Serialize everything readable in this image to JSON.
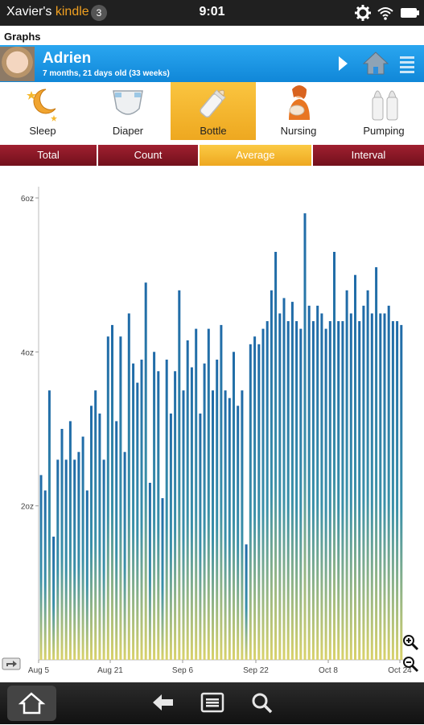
{
  "status_bar": {
    "device_owner": "Xavier's",
    "device_brand": "kindle",
    "notification_count": "3",
    "time": "9:01"
  },
  "screen_title": "Graphs",
  "child": {
    "name": "Adrien",
    "age": "7 months, 21 days old (33 weeks)"
  },
  "categories": [
    {
      "label": "Sleep",
      "icon": "moon-stars-icon",
      "active": false
    },
    {
      "label": "Diaper",
      "icon": "diaper-icon",
      "active": false
    },
    {
      "label": "Bottle",
      "icon": "bottle-icon",
      "active": true
    },
    {
      "label": "Nursing",
      "icon": "nursing-mother-icon",
      "active": false
    },
    {
      "label": "Pumping",
      "icon": "pump-bottles-icon",
      "active": false
    }
  ],
  "tabs": [
    {
      "label": "Total",
      "active": false
    },
    {
      "label": "Count",
      "active": false
    },
    {
      "label": "Average",
      "active": true
    },
    {
      "label": "Interval",
      "active": false
    }
  ],
  "colors": {
    "accent_blue": "#1a8ee0",
    "active_tab": "#f5b92e",
    "tab_red": "#8c1a28",
    "bar_top": "#1f6aa8",
    "bar_bottom": "#d9d26a"
  },
  "chart_data": {
    "type": "bar",
    "x_tick_labels": [
      "Aug 5",
      "Aug 21",
      "Sep 6",
      "Sep 22",
      "Oct 8",
      "Oct 24"
    ],
    "y_tick_labels": [
      "6oz",
      "4oz",
      "2oz"
    ],
    "ylim": [
      0,
      6
    ],
    "unit": "oz",
    "values": [
      2.4,
      2.2,
      3.5,
      1.6,
      2.6,
      3.0,
      2.6,
      3.1,
      2.6,
      2.7,
      2.9,
      2.2,
      3.3,
      3.5,
      3.2,
      2.6,
      4.2,
      4.35,
      3.1,
      4.2,
      2.7,
      4.5,
      3.85,
      3.6,
      3.9,
      4.9,
      2.3,
      4.0,
      3.75,
      2.1,
      3.9,
      3.2,
      3.75,
      4.8,
      3.5,
      4.15,
      3.8,
      4.3,
      3.2,
      3.85,
      4.3,
      3.5,
      3.9,
      4.35,
      3.5,
      3.4,
      4.0,
      3.3,
      3.5,
      1.5,
      4.1,
      4.2,
      4.1,
      4.3,
      4.4,
      4.8,
      5.3,
      4.5,
      4.7,
      4.4,
      4.65,
      4.4,
      4.3,
      5.8,
      4.6,
      4.4,
      4.6,
      4.5,
      4.3,
      4.4,
      5.3,
      4.4,
      4.4,
      4.8,
      4.5,
      5.0,
      4.4,
      4.6,
      4.8,
      4.5,
      5.1,
      4.5,
      4.5,
      4.6,
      4.4,
      4.4,
      4.35
    ]
  }
}
